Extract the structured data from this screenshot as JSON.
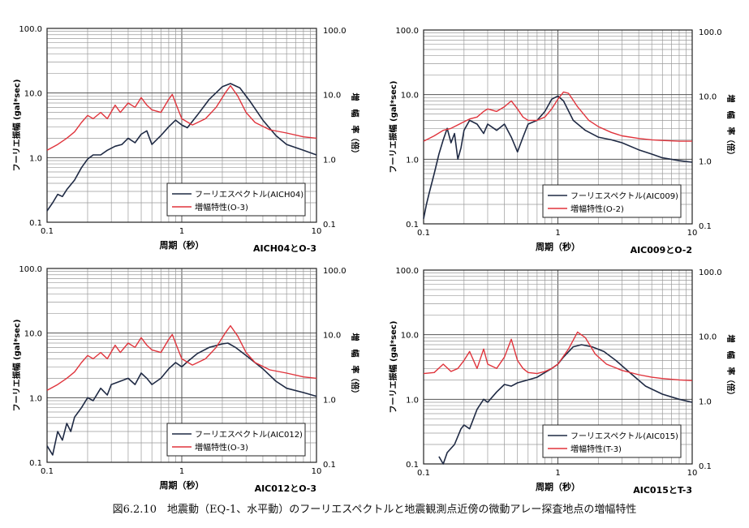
{
  "figure": {
    "caption": "図6.2.10　地震動（EQ-1、水平動）のフーリエスペクトルと地震観測点近傍の微動アレー探査地点の増幅特性"
  },
  "colors": {
    "fourier": "#1f2a44",
    "amplification": "#e0343c",
    "grid": "#7a7a7a",
    "frame": "#222222"
  },
  "chart_data": [
    {
      "type": "line",
      "subtitle": "AICH04とO-3",
      "xlabel": "周期（秒）",
      "ylabel": "フーリエ振幅 (gal*sec)",
      "y2label": "増　幅　率（倍）",
      "xscale": "log",
      "yscale": "log",
      "xlim": [
        0.1,
        10
      ],
      "ylim": [
        0.1,
        100
      ],
      "y2lim": [
        0.1,
        100
      ],
      "x_ticks": [
        "0.1",
        "1",
        "10"
      ],
      "y_ticks": [
        "0.1",
        "1.0",
        "10.0",
        "100.0"
      ],
      "y2_ticks": [
        "0.1",
        "1.0",
        "10.0",
        "100.0"
      ],
      "grid": true,
      "legend_position": "bottom-right",
      "series": [
        {
          "name": "フーリエスペクトル(AICH04)",
          "color": "#1f2a44",
          "x": [
            0.1,
            0.11,
            0.12,
            0.13,
            0.14,
            0.16,
            0.18,
            0.2,
            0.22,
            0.25,
            0.28,
            0.32,
            0.36,
            0.4,
            0.45,
            0.5,
            0.55,
            0.6,
            0.7,
            0.8,
            0.9,
            1.0,
            1.1,
            1.3,
            1.6,
            2.0,
            2.3,
            2.7,
            3.2,
            4,
            5,
            6,
            8,
            10
          ],
          "y": [
            0.15,
            0.2,
            0.27,
            0.25,
            0.32,
            0.45,
            0.7,
            0.95,
            1.1,
            1.1,
            1.3,
            1.5,
            1.6,
            2.0,
            1.7,
            2.3,
            2.6,
            1.6,
            2.2,
            3.0,
            3.8,
            3.2,
            2.9,
            4.5,
            8.0,
            12.5,
            14.0,
            12.0,
            7.5,
            3.8,
            2.2,
            1.6,
            1.3,
            1.1
          ]
        },
        {
          "name": "増幅特性(O-3)",
          "color": "#e0343c",
          "x": [
            0.1,
            0.12,
            0.14,
            0.16,
            0.18,
            0.2,
            0.22,
            0.25,
            0.28,
            0.32,
            0.35,
            0.4,
            0.45,
            0.5,
            0.55,
            0.6,
            0.7,
            0.8,
            0.85,
            0.9,
            1.0,
            1.2,
            1.5,
            1.8,
            2.1,
            2.3,
            2.6,
            3.0,
            3.5,
            4.5,
            6,
            8,
            10
          ],
          "y": [
            1.3,
            1.6,
            2.0,
            2.5,
            3.5,
            4.5,
            4.0,
            5.0,
            4.0,
            6.5,
            5.0,
            7.0,
            6.0,
            8.5,
            6.5,
            5.5,
            5.0,
            8.0,
            9.5,
            7.0,
            4.0,
            3.2,
            4.0,
            6.0,
            10.0,
            13.0,
            9.0,
            5.0,
            3.5,
            2.7,
            2.4,
            2.1,
            2.0
          ]
        }
      ]
    },
    {
      "type": "line",
      "subtitle": "AIC009とO-2",
      "xlabel": "周期（秒）",
      "ylabel": "フーリエ振幅 (gal*sec)",
      "y2label": "増　幅　率（倍）",
      "xscale": "log",
      "yscale": "log",
      "xlim": [
        0.1,
        10
      ],
      "ylim": [
        0.1,
        100
      ],
      "y2lim": [
        0.1,
        100
      ],
      "x_ticks": [
        "0.1",
        "1",
        "10"
      ],
      "y_ticks": [
        "0.1",
        "1.0",
        "10.0",
        "100.0"
      ],
      "y2_ticks": [
        "0.1",
        "1.0",
        "10.0",
        "100.0"
      ],
      "grid": true,
      "legend_position": "bottom-right",
      "series": [
        {
          "name": "フーリエスペクトル(AIC009)",
          "color": "#1f2a44",
          "x": [
            0.1,
            0.105,
            0.11,
            0.12,
            0.13,
            0.14,
            0.15,
            0.16,
            0.17,
            0.18,
            0.19,
            0.2,
            0.22,
            0.25,
            0.28,
            0.3,
            0.35,
            0.4,
            0.45,
            0.5,
            0.55,
            0.6,
            0.7,
            0.8,
            0.9,
            1.0,
            1.1,
            1.3,
            1.6,
            2.0,
            2.5,
            3,
            4,
            5,
            6,
            8,
            10
          ],
          "y": [
            0.12,
            0.2,
            0.3,
            0.6,
            1.2,
            2.0,
            3.0,
            1.8,
            2.5,
            1.0,
            1.5,
            2.8,
            4.0,
            3.5,
            2.5,
            3.5,
            2.8,
            3.5,
            2.2,
            1.3,
            2.2,
            3.5,
            4.0,
            5.5,
            8.5,
            9.5,
            8.0,
            4.0,
            2.8,
            2.2,
            2.0,
            1.8,
            1.4,
            1.2,
            1.05,
            0.95,
            0.9
          ]
        },
        {
          "name": "増幅特性(O-2)",
          "color": "#e0343c",
          "x": [
            0.1,
            0.12,
            0.14,
            0.16,
            0.18,
            0.2,
            0.22,
            0.25,
            0.28,
            0.3,
            0.35,
            0.4,
            0.45,
            0.5,
            0.55,
            0.6,
            0.7,
            0.8,
            0.9,
            1.0,
            1.1,
            1.2,
            1.4,
            1.7,
            2,
            2.5,
            3,
            4,
            5,
            6,
            8,
            10
          ],
          "y": [
            1.9,
            2.3,
            2.8,
            3.0,
            3.4,
            3.8,
            4.2,
            4.5,
            5.5,
            6.0,
            5.5,
            6.5,
            8.0,
            6.0,
            4.5,
            4.0,
            4.0,
            4.5,
            6.0,
            8.5,
            11.0,
            10.5,
            6.5,
            4.0,
            3.2,
            2.6,
            2.3,
            2.1,
            2.0,
            1.95,
            1.9,
            1.9
          ]
        }
      ]
    },
    {
      "type": "line",
      "subtitle": "AIC012とO-3",
      "xlabel": "周期（秒）",
      "ylabel": "フーリエ振幅 (gal*sec)",
      "y2label": "増　幅　率（倍）",
      "xscale": "log",
      "yscale": "log",
      "xlim": [
        0.1,
        10
      ],
      "ylim": [
        0.1,
        100
      ],
      "y2lim": [
        0.1,
        100
      ],
      "x_ticks": [
        "0.1",
        "1",
        "10"
      ],
      "y_ticks": [
        "0.1",
        "1.0",
        "10.0",
        "100.0"
      ],
      "y2_ticks": [
        "0.1",
        "1.0",
        "10.0",
        "100.0"
      ],
      "grid": true,
      "legend_position": "bottom-right",
      "series": [
        {
          "name": "フーリエスペクトル(AIC012)",
          "color": "#1f2a44",
          "x": [
            0.1,
            0.11,
            0.12,
            0.13,
            0.14,
            0.15,
            0.16,
            0.18,
            0.2,
            0.22,
            0.25,
            0.28,
            0.3,
            0.35,
            0.4,
            0.45,
            0.5,
            0.55,
            0.6,
            0.7,
            0.8,
            0.9,
            1.0,
            1.1,
            1.3,
            1.6,
            2.0,
            2.2,
            2.5,
            3,
            4,
            5,
            6,
            8,
            10
          ],
          "y": [
            0.18,
            0.13,
            0.3,
            0.22,
            0.4,
            0.3,
            0.5,
            0.7,
            1.0,
            0.9,
            1.4,
            1.1,
            1.6,
            1.8,
            2.0,
            1.6,
            2.4,
            2.0,
            1.6,
            2.0,
            2.8,
            3.5,
            3.0,
            3.6,
            4.8,
            6.0,
            6.8,
            7.0,
            6.0,
            4.5,
            2.8,
            1.8,
            1.4,
            1.2,
            1.05
          ]
        },
        {
          "name": "増幅特性(O-3)",
          "color": "#e0343c",
          "x": [
            0.1,
            0.12,
            0.14,
            0.16,
            0.18,
            0.2,
            0.22,
            0.25,
            0.28,
            0.32,
            0.35,
            0.4,
            0.45,
            0.5,
            0.55,
            0.6,
            0.7,
            0.8,
            0.85,
            0.9,
            1.0,
            1.2,
            1.5,
            1.8,
            2.1,
            2.3,
            2.6,
            3.0,
            3.5,
            4.5,
            6,
            8,
            10
          ],
          "y": [
            1.3,
            1.6,
            2.0,
            2.5,
            3.5,
            4.5,
            4.0,
            5.0,
            4.0,
            6.5,
            5.0,
            7.0,
            6.0,
            8.5,
            6.5,
            5.5,
            5.0,
            8.0,
            9.5,
            7.0,
            4.0,
            3.2,
            4.0,
            6.0,
            10.0,
            13.0,
            9.0,
            5.0,
            3.5,
            2.7,
            2.4,
            2.1,
            2.0
          ]
        }
      ]
    },
    {
      "type": "line",
      "subtitle": "AIC015とT-3",
      "xlabel": "周期（秒）",
      "ylabel": "フーリエ振幅 (gal*sec)",
      "y2label": "増　幅　率（倍）",
      "xscale": "log",
      "yscale": "log",
      "xlim": [
        0.1,
        10
      ],
      "ylim": [
        0.1,
        100
      ],
      "y2lim": [
        0.1,
        100
      ],
      "x_ticks": [
        "0.1",
        "1",
        "10"
      ],
      "y_ticks": [
        "0.1",
        "1.0",
        "10.0",
        "100.0"
      ],
      "y2_ticks": [
        "0.1",
        "1.0",
        "10.0",
        "100.0"
      ],
      "grid": true,
      "legend_position": "bottom-right",
      "series": [
        {
          "name": "フーリエスペクトル(AIC015)",
          "color": "#1f2a44",
          "x": [
            0.13,
            0.14,
            0.15,
            0.17,
            0.19,
            0.2,
            0.22,
            0.25,
            0.28,
            0.3,
            0.35,
            0.4,
            0.45,
            0.5,
            0.6,
            0.7,
            0.8,
            0.9,
            1.0,
            1.1,
            1.3,
            1.5,
            1.8,
            2.2,
            2.7,
            3.5,
            4.5,
            6,
            8,
            10
          ],
          "y": [
            0.13,
            0.1,
            0.15,
            0.2,
            0.35,
            0.4,
            0.35,
            0.7,
            1.0,
            0.9,
            1.3,
            1.7,
            1.6,
            1.8,
            2.0,
            2.2,
            2.6,
            3.0,
            3.5,
            4.5,
            6.5,
            7.0,
            6.5,
            5.5,
            4.0,
            2.5,
            1.6,
            1.2,
            1.0,
            0.9
          ]
        },
        {
          "name": "増幅特性(T-3)",
          "color": "#e0343c",
          "x": [
            0.1,
            0.12,
            0.14,
            0.16,
            0.18,
            0.2,
            0.22,
            0.25,
            0.28,
            0.3,
            0.35,
            0.4,
            0.45,
            0.5,
            0.55,
            0.6,
            0.7,
            0.8,
            0.9,
            1.0,
            1.2,
            1.4,
            1.6,
            1.9,
            2.3,
            3,
            4,
            5,
            6,
            8,
            10
          ],
          "y": [
            2.5,
            2.6,
            3.5,
            2.7,
            3.0,
            4.0,
            5.5,
            3.0,
            6.0,
            3.5,
            3.0,
            4.5,
            8.5,
            4.0,
            3.0,
            2.6,
            2.5,
            2.7,
            3.0,
            3.5,
            6.0,
            11.0,
            9.0,
            5.0,
            3.5,
            2.8,
            2.4,
            2.2,
            2.1,
            2.0,
            1.95
          ]
        }
      ]
    }
  ]
}
